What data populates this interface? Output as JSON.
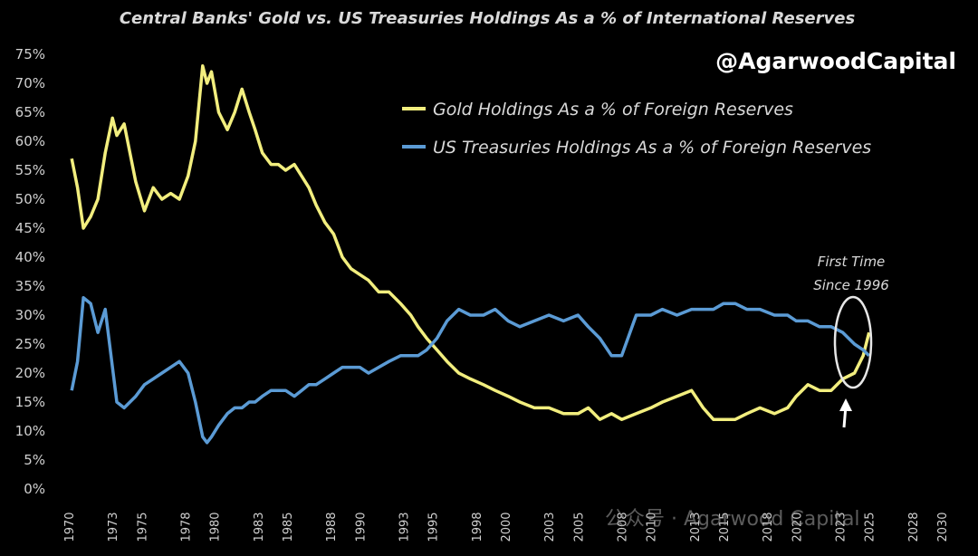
{
  "chart_data": {
    "type": "line",
    "title": "Central Banks' Gold vs. US Treasuries Holdings As a % of International Reserves",
    "xlabel": "",
    "ylabel": "",
    "xlim": [
      1970,
      2030
    ],
    "ylim": [
      0,
      75
    ],
    "y_ticks": [
      0,
      5,
      10,
      15,
      20,
      25,
      30,
      35,
      40,
      45,
      50,
      55,
      60,
      65,
      70,
      75
    ],
    "y_tick_labels": [
      "0%",
      "5%",
      "10%",
      "15%",
      "20%",
      "25%",
      "30%",
      "35%",
      "40%",
      "45%",
      "50%",
      "55%",
      "60%",
      "65%",
      "70%",
      "75%"
    ],
    "x_ticks": [
      1970,
      1973,
      1975,
      1978,
      1980,
      1983,
      1985,
      1988,
      1990,
      1993,
      1995,
      1998,
      2000,
      2003,
      2005,
      2008,
      2010,
      2013,
      2015,
      2018,
      2020,
      2023,
      2025,
      2028,
      2030
    ],
    "x_tick_labels": [
      "1970",
      "1973",
      "1975",
      "1978",
      "1980",
      "1983",
      "1985",
      "1988",
      "1990",
      "1993",
      "1995",
      "1998",
      "2000",
      "2003",
      "2005",
      "2008",
      "2010",
      "2013",
      "2015",
      "2018",
      "2020",
      "2023",
      "2025",
      "2028",
      "2030"
    ],
    "legend_position": "top-right",
    "series": [
      {
        "name": "Gold Holdings As a % of Foreign Reserves",
        "color": "#f2ee7e",
        "x": [
          1970.2,
          1970.6,
          1971.0,
          1971.5,
          1972.0,
          1972.5,
          1973.0,
          1973.3,
          1973.8,
          1974.2,
          1974.6,
          1975.2,
          1975.8,
          1976.4,
          1977.0,
          1977.6,
          1978.2,
          1978.7,
          1979.2,
          1979.5,
          1979.8,
          1980.3,
          1980.9,
          1981.4,
          1981.9,
          1982.4,
          1982.8,
          1983.3,
          1983.9,
          1984.4,
          1984.9,
          1985.5,
          1986.0,
          1986.5,
          1987.0,
          1987.6,
          1988.2,
          1988.8,
          1989.4,
          1990.0,
          1990.6,
          1991.3,
          1992.0,
          1992.8,
          1993.5,
          1994.0,
          1994.6,
          1995.3,
          1996.0,
          1996.8,
          1997.6,
          1998.5,
          1999.3,
          2000.2,
          2001.0,
          2002.0,
          2003.0,
          2004.0,
          2005.0,
          2005.7,
          2006.5,
          2007.3,
          2008.0,
          2009.0,
          2010.0,
          2010.8,
          2011.8,
          2012.8,
          2013.6,
          2014.3,
          2015.0,
          2015.8,
          2016.6,
          2017.5,
          2018.5,
          2019.4,
          2020.0,
          2020.8,
          2021.6,
          2022.4,
          2023.2,
          2024.0,
          2024.6,
          2025.0
        ],
        "values": [
          57,
          52,
          45,
          47,
          50,
          58,
          64,
          61,
          63,
          58,
          53,
          48,
          52,
          50,
          51,
          50,
          54,
          60,
          73,
          70,
          72,
          65,
          62,
          65,
          69,
          65,
          62,
          58,
          56,
          56,
          55,
          56,
          54,
          52,
          49,
          46,
          44,
          40,
          38,
          37,
          36,
          34,
          34,
          32,
          30,
          28,
          26,
          24,
          22,
          20,
          19,
          18,
          17,
          16,
          15,
          14,
          14,
          13,
          13,
          14,
          12,
          13,
          12,
          13,
          14,
          15,
          16,
          17,
          14,
          12,
          12,
          12,
          13,
          14,
          13,
          14,
          16,
          18,
          17,
          17,
          19,
          20,
          23,
          27
        ]
      },
      {
        "name": "US Treasuries Holdings As a % of Foreign Reserves",
        "color": "#5b9bd5",
        "x": [
          1970.2,
          1970.6,
          1971.0,
          1971.5,
          1972.0,
          1972.5,
          1973.0,
          1973.3,
          1973.8,
          1974.2,
          1974.6,
          1975.2,
          1975.8,
          1976.4,
          1977.0,
          1977.6,
          1978.2,
          1978.7,
          1979.2,
          1979.5,
          1979.8,
          1980.3,
          1980.9,
          1981.4,
          1981.9,
          1982.4,
          1982.8,
          1983.3,
          1983.9,
          1984.4,
          1984.9,
          1985.5,
          1986.0,
          1986.5,
          1987.0,
          1987.6,
          1988.2,
          1988.8,
          1989.4,
          1990.0,
          1990.6,
          1991.3,
          1992.0,
          1992.8,
          1993.5,
          1994.0,
          1994.6,
          1995.3,
          1996.0,
          1996.8,
          1997.6,
          1998.5,
          1999.3,
          2000.2,
          2001.0,
          2002.0,
          2003.0,
          2004.0,
          2005.0,
          2005.7,
          2006.5,
          2007.3,
          2008.0,
          2009.0,
          2010.0,
          2010.8,
          2011.8,
          2012.8,
          2013.6,
          2014.3,
          2015.0,
          2015.8,
          2016.6,
          2017.5,
          2018.5,
          2019.4,
          2020.0,
          2020.8,
          2021.6,
          2022.4,
          2023.2,
          2024.0,
          2024.6,
          2025.0
        ],
        "values": [
          17,
          22,
          33,
          32,
          27,
          31,
          21,
          15,
          14,
          15,
          16,
          18,
          19,
          20,
          21,
          22,
          20,
          15,
          9,
          8,
          9,
          11,
          13,
          14,
          14,
          15,
          15,
          16,
          17,
          17,
          17,
          16,
          17,
          18,
          18,
          19,
          20,
          21,
          21,
          21,
          20,
          21,
          22,
          23,
          23,
          23,
          24,
          26,
          29,
          31,
          30,
          30,
          31,
          29,
          28,
          29,
          30,
          29,
          30,
          28,
          26,
          23,
          23,
          30,
          30,
          31,
          30,
          31,
          31,
          31,
          32,
          32,
          31,
          31,
          30,
          30,
          29,
          29,
          28,
          28,
          27,
          25,
          24,
          23
        ]
      }
    ],
    "annotations": [
      {
        "text_line1": "First Time",
        "text_line2": "Since 1996",
        "x": 2025,
        "y": 25
      }
    ]
  },
  "branding": {
    "handle": "@AgarwoodCapital",
    "watermark": "公众号 · Agarwood Capital"
  }
}
